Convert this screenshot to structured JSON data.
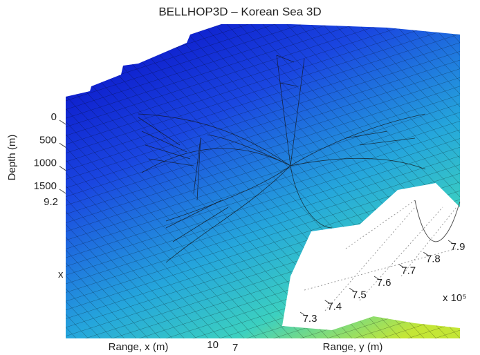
{
  "chart_data": {
    "type": "surface",
    "title": "BELLHOP3D – Korean Sea 3D",
    "zlabel": "Depth (m)",
    "xlabel": "Range, x (m)",
    "ylabel": "Range, y (m)",
    "zlim": [
      0,
      1500
    ],
    "zticks": [
      0,
      500,
      1000,
      1500
    ],
    "ylim": [
      7.3,
      7.9
    ],
    "yticks": [
      7.3,
      7.4,
      7.5,
      7.6,
      7.7,
      7.8,
      7.9
    ],
    "y_exponent": "x 10⁵",
    "annotations": [
      "9.2",
      "x",
      "10",
      "7"
    ]
  }
}
